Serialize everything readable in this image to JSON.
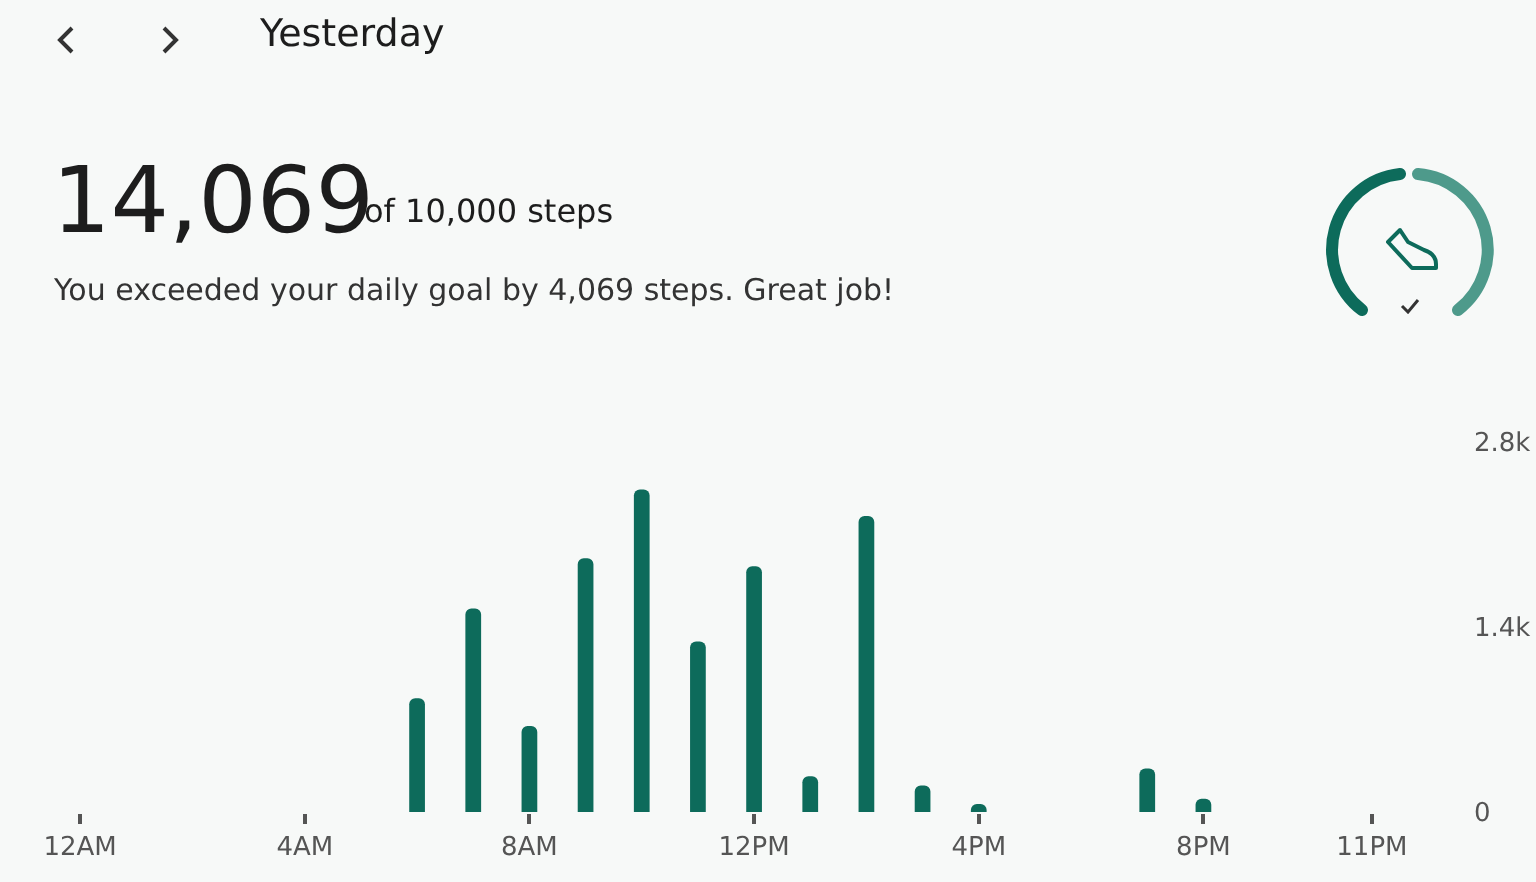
{
  "chart_data": {
    "type": "bar",
    "title": "Yesterday",
    "annotations": [
      "14,069",
      "of 10,000 steps",
      "You exceeded your daily goal by 4,069 steps. Great job!"
    ],
    "categories": [
      "12AM",
      null,
      null,
      null,
      "4AM",
      null,
      null,
      null,
      "8AM",
      null,
      null,
      null,
      "12PM",
      null,
      null,
      null,
      "4PM",
      null,
      null,
      null,
      "8PM",
      null,
      null,
      "11PM"
    ],
    "values": [
      0,
      0,
      0,
      0,
      0,
      0,
      860,
      1540,
      650,
      1920,
      2440,
      1290,
      1860,
      270,
      2240,
      200,
      60,
      0,
      0,
      330,
      100,
      0,
      0,
      0
    ],
    "color": "#0d6b5b",
    "ylim": [
      0,
      2800
    ],
    "yticks": [
      0,
      {
        "value": 1400,
        "label": "1.4k"
      },
      {
        "value": 2800,
        "label": "2.8k"
      }
    ],
    "grid": false,
    "legend": false
  }
}
